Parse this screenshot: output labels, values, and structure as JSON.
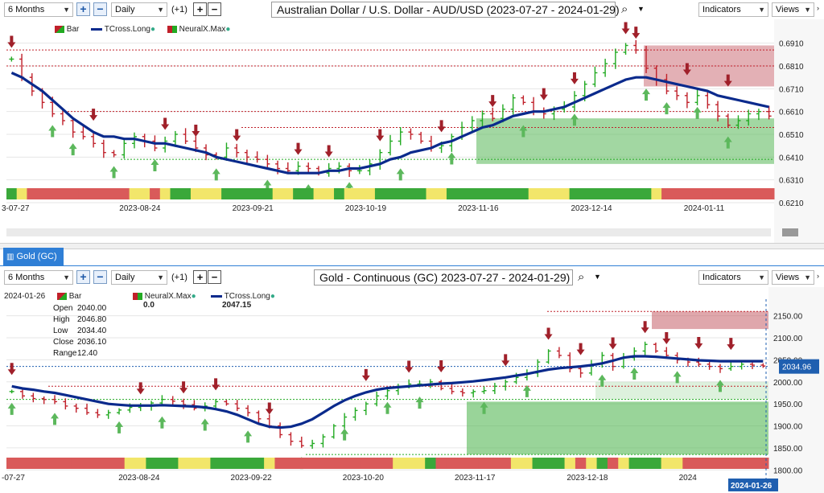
{
  "top_toolbar": {
    "period": "6 Months",
    "interval": "Daily",
    "offset": "(+1)",
    "title": "Australian Dollar / U.S. Dollar - AUD/USD (2023-07-27 - 2024-01-29)",
    "indicators": "Indicators",
    "views": "Views"
  },
  "bottom_toolbar": {
    "tab": "Gold (GC)",
    "period": "6 Months",
    "interval": "Daily",
    "offset": "(+1)",
    "title": "Gold - Continuous (GC) 2023-07-27 - 2024-01-29)",
    "indicators": "Indicators",
    "views": "Views"
  },
  "top_legend": {
    "bar": "Bar",
    "tcross": "TCross.Long",
    "neural": "NeuralX.Max"
  },
  "bottom_legend": {
    "date": "2024-01-26",
    "bar": "Bar",
    "neural": "NeuralX.Max",
    "neural_value": "0.0",
    "tcross": "TCross.Long",
    "tcross_value": "2047.15",
    "open_label": "Open",
    "open": "2040.00",
    "high_label": "High",
    "high": "2046.80",
    "low_label": "Low",
    "low": "2034.40",
    "close_label": "Close",
    "close": "2036.10",
    "range_label": "Range",
    "range": "12.40"
  },
  "chart_data": [
    {
      "type": "line",
      "title": "Australian Dollar / U.S. Dollar - AUD/USD (2023-07-27 - 2024-01-29)",
      "x_ticks": [
        "3-07-27",
        "2023-08-24",
        "2023-09-21",
        "2023-10-19",
        "2023-11-16",
        "2023-12-14",
        "2024-01-11"
      ],
      "y_ticks": [
        "0.6910",
        "0.6810",
        "0.6710",
        "0.6610",
        "0.6510",
        "0.6410",
        "0.6310",
        "0.6210"
      ],
      "ylim": [
        0.621,
        0.693
      ],
      "series": [
        {
          "name": "Bar",
          "close": [
            0.684,
            0.676,
            0.67,
            0.665,
            0.66,
            0.657,
            0.652,
            0.65,
            0.647,
            0.643,
            0.642,
            0.647,
            0.65,
            0.648,
            0.645,
            0.648,
            0.651,
            0.648,
            0.645,
            0.642,
            0.641,
            0.645,
            0.643,
            0.641,
            0.64,
            0.638,
            0.636,
            0.635,
            0.637,
            0.636,
            0.634,
            0.636,
            0.637,
            0.635,
            0.635,
            0.638,
            0.643,
            0.648,
            0.652,
            0.651,
            0.648,
            0.645,
            0.646,
            0.65,
            0.654,
            0.657,
            0.66,
            0.658,
            0.662,
            0.667,
            0.665,
            0.661,
            0.66,
            0.662,
            0.663,
            0.668,
            0.673,
            0.678,
            0.682,
            0.687,
            0.69,
            0.688,
            0.68,
            0.675,
            0.67,
            0.668,
            0.665,
            0.668,
            0.664,
            0.659,
            0.655,
            0.657,
            0.66,
            0.661,
            0.659
          ]
        },
        {
          "name": "TCross.Long",
          "values": [
            0.678,
            0.676,
            0.673,
            0.67,
            0.666,
            0.662,
            0.658,
            0.655,
            0.652,
            0.65,
            0.65,
            0.649,
            0.649,
            0.648,
            0.647,
            0.647,
            0.646,
            0.645,
            0.644,
            0.643,
            0.641,
            0.64,
            0.639,
            0.638,
            0.637,
            0.636,
            0.635,
            0.634,
            0.634,
            0.634,
            0.634,
            0.635,
            0.635,
            0.636,
            0.636,
            0.637,
            0.638,
            0.64,
            0.641,
            0.643,
            0.644,
            0.645,
            0.647,
            0.648,
            0.65,
            0.652,
            0.654,
            0.655,
            0.657,
            0.659,
            0.66,
            0.661,
            0.661,
            0.662,
            0.663,
            0.665,
            0.667,
            0.669,
            0.671,
            0.673,
            0.675,
            0.676,
            0.676,
            0.675,
            0.674,
            0.673,
            0.672,
            0.671,
            0.67,
            0.668,
            0.667,
            0.666,
            0.665,
            0.664,
            0.663
          ]
        }
      ]
    },
    {
      "type": "line",
      "title": "Gold - Continuous (GC) 2023-07-27 - 2024-01-29)",
      "x_ticks": [
        "-07-27",
        "2023-08-24",
        "2023-09-22",
        "2023-10-20",
        "2023-11-17",
        "2023-12-18",
        "2024"
      ],
      "y_ticks": [
        "2150.00",
        "2100.00",
        "2050.00",
        "2000.00",
        "1950.00",
        "1900.00",
        "1850.00",
        "1800.00"
      ],
      "ylim": [
        1795,
        2175
      ],
      "last_price_label": "2034.96",
      "last_date_label": "2024-01-26",
      "series": [
        {
          "name": "Bar",
          "close": [
            1978,
            1968,
            1962,
            1960,
            1955,
            1945,
            1940,
            1930,
            1925,
            1930,
            1936,
            1942,
            1945,
            1952,
            1960,
            1956,
            1948,
            1940,
            1945,
            1955,
            1950,
            1940,
            1930,
            1916,
            1900,
            1880,
            1865,
            1855,
            1860,
            1875,
            1900,
            1920,
            1935,
            1950,
            1968,
            1980,
            1990,
            1995,
            1995,
            2000,
            1985,
            1978,
            1975,
            1978,
            1980,
            1990,
            2000,
            2010,
            2020,
            2045,
            2070,
            2060,
            2030,
            2020,
            2040,
            2060,
            2035,
            2055,
            2070,
            2085,
            2070,
            2060,
            2050,
            2045,
            2040,
            2035,
            2030,
            2035,
            2040,
            2038,
            2036
          ]
        },
        {
          "name": "TCross.Long",
          "values": [
            1990,
            1985,
            1982,
            1978,
            1975,
            1970,
            1965,
            1960,
            1955,
            1950,
            1948,
            1946,
            1946,
            1946,
            1947,
            1946,
            1945,
            1944,
            1942,
            1938,
            1933,
            1925,
            1915,
            1905,
            1898,
            1896,
            1898,
            1905,
            1915,
            1930,
            1945,
            1958,
            1968,
            1976,
            1982,
            1986,
            1988,
            1990,
            1992,
            1994,
            1996,
            1997,
            1999,
            2001,
            2004,
            2007,
            2010,
            2014,
            2018,
            2023,
            2028,
            2031,
            2033,
            2035,
            2038,
            2042,
            2048,
            2055,
            2058,
            2058,
            2057,
            2055,
            2053,
            2051,
            2049,
            2048,
            2047,
            2047,
            2047,
            2047,
            2047
          ]
        }
      ]
    }
  ],
  "colors": {
    "up": "#22aa22",
    "down": "#c0202a",
    "tcross": "#0a2a8c",
    "strip_red": "#d95a5a",
    "strip_green": "#3aa83a",
    "strip_yellow": "#f2e66a",
    "arrow_up": "#5cb85c",
    "arrow_down": "#a0202a",
    "zone_red": "#c0505a",
    "zone_green": "#55b755"
  }
}
